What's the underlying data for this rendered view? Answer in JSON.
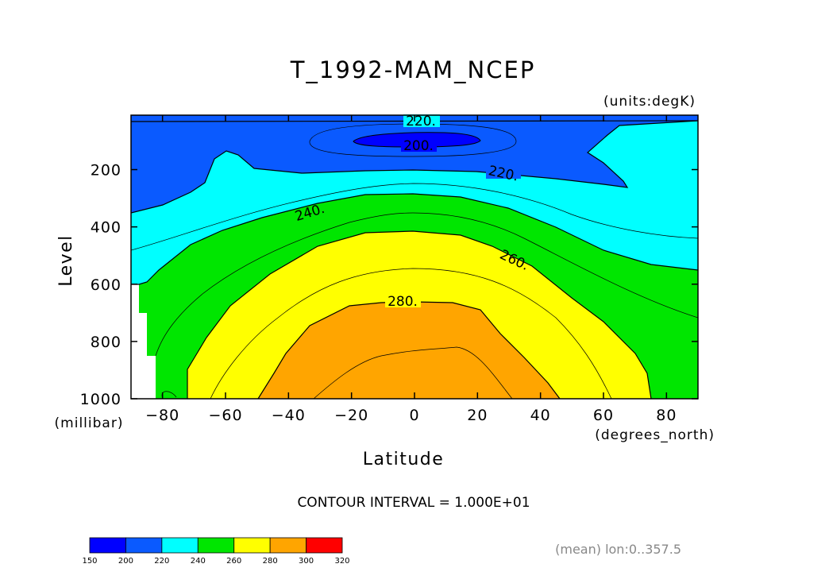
{
  "chart_data": {
    "type": "heatmap",
    "subtype": "filled-contour",
    "title": "T_1992-MAM_NCEP",
    "units_label": "(units:degK)",
    "xlabel": "Latitude",
    "x_units_label": "(degrees_north)",
    "ylabel": "Level",
    "y_units_label": "(millibar)",
    "xlim": [
      -90,
      90
    ],
    "ylim": [
      1000,
      10
    ],
    "x_ticks": [
      -80,
      -60,
      -40,
      -20,
      0,
      20,
      40,
      60,
      80
    ],
    "x_tick_labels": [
      "−80",
      "−60",
      "−40",
      "−20",
      "0",
      "20",
      "40",
      "60",
      "80"
    ],
    "y_ticks": [
      200,
      400,
      600,
      800,
      1000
    ],
    "y_tick_labels": [
      "200",
      "400",
      "600",
      "800",
      "1000"
    ],
    "contour_labels": [
      {
        "text": "220.",
        "lat": 2,
        "level": 20
      },
      {
        "text": "200.",
        "lat": -5,
        "level": 110
      },
      {
        "text": "220.",
        "lat": 30,
        "level": 200
      },
      {
        "text": "240.",
        "lat": -37,
        "level": 330
      },
      {
        "text": "260.",
        "lat": 35,
        "level": 530
      },
      {
        "text": "280.",
        "lat": -4,
        "level": 665
      }
    ],
    "contour_interval_text": "CONTOUR INTERVAL = 1.000E+01",
    "footer_note": "(mean) lon:0..357.5",
    "colorbar": {
      "levels": [
        "150",
        "200",
        "220",
        "240",
        "260",
        "280",
        "300",
        "320"
      ],
      "colors": [
        "#0000ff",
        "#0a5aff",
        "#00ffff",
        "#00e600",
        "#ffff00",
        "#ffa500",
        "#ff0000"
      ]
    },
    "bands": [
      {
        "range": "200-220",
        "color": "#0a5aff"
      },
      {
        "range": "<200",
        "color": "#0000ff"
      },
      {
        "range": "220-240",
        "color": "#00ffff"
      },
      {
        "range": "240-260",
        "color": "#00e600"
      },
      {
        "range": "260-280",
        "color": "#ffff00"
      },
      {
        "range": "280-300",
        "color": "#ffa500"
      }
    ]
  }
}
